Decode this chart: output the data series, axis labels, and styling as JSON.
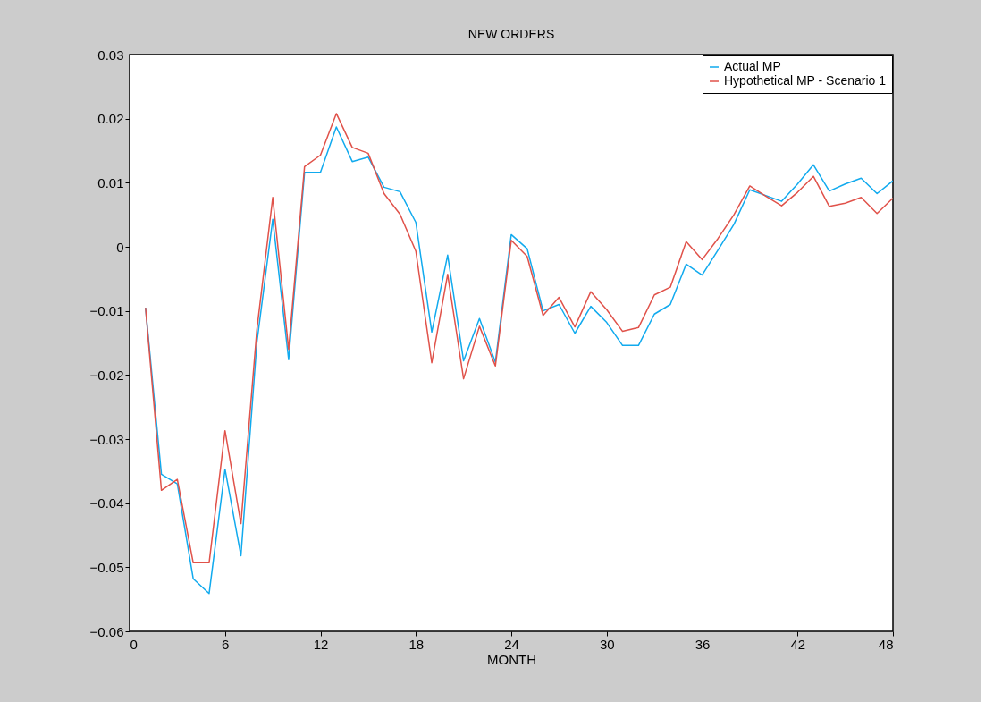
{
  "chart_data": {
    "type": "line",
    "title": "NEW ORDERS",
    "xlabel": "MONTH",
    "x": [
      1,
      2,
      3,
      4,
      5,
      6,
      7,
      8,
      9,
      10,
      11,
      12,
      13,
      14,
      15,
      16,
      17,
      18,
      19,
      20,
      21,
      22,
      23,
      24,
      25,
      26,
      27,
      28,
      29,
      30,
      31,
      32,
      33,
      34,
      35,
      36,
      37,
      38,
      39,
      40,
      41,
      42,
      43,
      44,
      45,
      46,
      47,
      48
    ],
    "series": [
      {
        "name": "Actual MP",
        "color": "#11aaee",
        "values": [
          -0.0095,
          -0.0355,
          -0.037,
          -0.0518,
          -0.0541,
          -0.0347,
          -0.0482,
          -0.015,
          0.0043,
          -0.0176,
          0.0116,
          0.0116,
          0.0187,
          0.0133,
          0.014,
          0.0093,
          0.0086,
          0.0038,
          -0.0133,
          -0.0013,
          -0.0178,
          -0.0112,
          -0.018,
          0.0019,
          -0.0003,
          -0.01,
          -0.009,
          -0.0135,
          -0.0093,
          -0.0118,
          -0.0154,
          -0.0154,
          -0.0105,
          -0.009,
          -0.0027,
          -0.0044,
          -0.0005,
          0.0035,
          0.0089,
          0.008,
          0.0071,
          0.0098,
          0.0128,
          0.0087,
          0.0098,
          0.0107,
          0.0083,
          0.0103
        ]
      },
      {
        "name": "Hypothetical MP - Scenario 1",
        "color": "#e0524a",
        "values": [
          -0.0095,
          -0.038,
          -0.0363,
          -0.0493,
          -0.0493,
          -0.0287,
          -0.0432,
          -0.013,
          0.0077,
          -0.016,
          0.0125,
          0.0143,
          0.0208,
          0.0155,
          0.0146,
          0.0083,
          0.0051,
          -0.0007,
          -0.0181,
          -0.0043,
          -0.0206,
          -0.0124,
          -0.0186,
          0.001,
          -0.0015,
          -0.0107,
          -0.0079,
          -0.0125,
          -0.007,
          -0.0098,
          -0.0132,
          -0.0126,
          -0.0075,
          -0.0063,
          0.0008,
          -0.002,
          0.0013,
          0.005,
          0.0095,
          0.0079,
          0.0064,
          0.0085,
          0.011,
          0.0063,
          0.0068,
          0.0077,
          0.0052,
          0.0076
        ]
      }
    ],
    "xlim": [
      0,
      48
    ],
    "xticks": [
      0,
      6,
      12,
      18,
      24,
      30,
      36,
      42,
      48
    ],
    "ylim": [
      -0.06,
      0.03
    ],
    "yticks": [
      -0.06,
      -0.05,
      -0.04,
      -0.03,
      -0.02,
      -0.01,
      0,
      0.01,
      0.02,
      0.03
    ],
    "legend": "top right",
    "grid": false,
    "marker": "none",
    "line_style": "solid"
  }
}
